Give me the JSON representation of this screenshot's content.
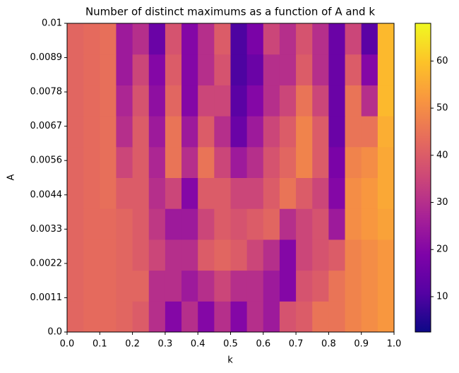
{
  "chart_data": {
    "type": "heatmap",
    "title": "Number of distinct maximums as a function of A and k",
    "x_label": "k",
    "y_label": "A",
    "colormap": "plasma",
    "xlim": [
      0,
      1
    ],
    "ylim": [
      0,
      0.01
    ],
    "clim": [
      2.5,
      68
    ],
    "xticks": [
      {
        "value": 0,
        "label": "0.0"
      },
      0.1,
      0.2,
      0.3,
      0.4,
      0.5,
      0.6,
      0.7,
      0.8,
      0.9,
      {
        "value": 1,
        "label": "1.0"
      }
    ],
    "yticks": [
      {
        "value": 0,
        "label": "0.0"
      },
      {
        "value": 0.001111,
        "label": "0.0011"
      },
      {
        "value": 0.002222,
        "label": "0.0022"
      },
      {
        "value": 0.003333,
        "label": "0.0033"
      },
      {
        "value": 0.004444,
        "label": "0.0044"
      },
      {
        "value": 0.005556,
        "label": "0.0056"
      },
      {
        "value": 0.006667,
        "label": "0.0067"
      },
      {
        "value": 0.007778,
        "label": "0.0078"
      },
      {
        "value": 0.008889,
        "label": "0.0089"
      },
      0.01
    ],
    "cticks": [
      10,
      20,
      30,
      40,
      50,
      60
    ],
    "z": [
      [
        42,
        43,
        43,
        42,
        40,
        30,
        20,
        30,
        20,
        30,
        20,
        30,
        25,
        38,
        40,
        45,
        45,
        48,
        50,
        52
      ],
      [
        42,
        43,
        43,
        42,
        42,
        30,
        30,
        25,
        30,
        35,
        30,
        30,
        25,
        20,
        38,
        40,
        45,
        48,
        50,
        52
      ],
      [
        42,
        43,
        43,
        42,
        40,
        35,
        30,
        30,
        40,
        42,
        40,
        35,
        30,
        20,
        35,
        38,
        40,
        48,
        50,
        52
      ],
      [
        42,
        43,
        43,
        42,
        40,
        32,
        25,
        25,
        35,
        40,
        38,
        40,
        42,
        30,
        35,
        38,
        25,
        50,
        52,
        54
      ],
      [
        42,
        43,
        44,
        40,
        40,
        30,
        35,
        20,
        40,
        40,
        35,
        35,
        40,
        45,
        40,
        35,
        20,
        50,
        52,
        55
      ],
      [
        42,
        43,
        44,
        35,
        40,
        28,
        45,
        30,
        45,
        35,
        25,
        30,
        38,
        42,
        48,
        40,
        18,
        48,
        50,
        55
      ],
      [
        42,
        43,
        44,
        30,
        40,
        25,
        45,
        25,
        40,
        30,
        15,
        25,
        35,
        40,
        48,
        40,
        15,
        45,
        45,
        56
      ],
      [
        42,
        43,
        44,
        28,
        38,
        22,
        42,
        20,
        35,
        35,
        12,
        20,
        30,
        35,
        45,
        35,
        15,
        45,
        30,
        58
      ],
      [
        42,
        43,
        44,
        25,
        35,
        20,
        40,
        20,
        30,
        38,
        10,
        15,
        30,
        30,
        40,
        30,
        15,
        40,
        20,
        58
      ],
      [
        42,
        43,
        44,
        25,
        30,
        15,
        38,
        20,
        30,
        40,
        10,
        18,
        35,
        30,
        38,
        30,
        15,
        35,
        12,
        58
      ]
    ]
  }
}
